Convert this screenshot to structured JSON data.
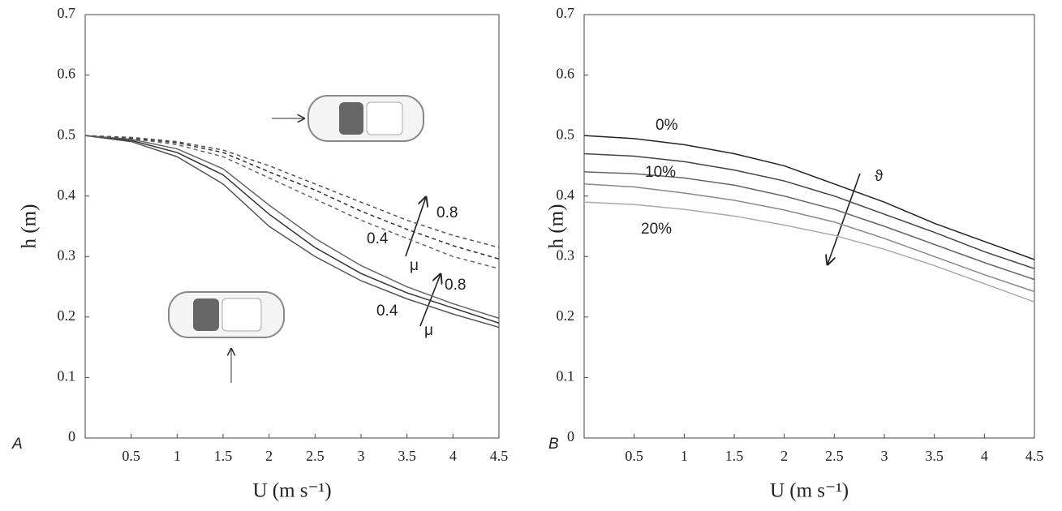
{
  "chart_data": [
    {
      "type": "line",
      "panel_label": "A",
      "xlabel": "U (m s⁻¹)",
      "ylabel": "h (m)",
      "x": [
        0,
        0.5,
        1,
        1.5,
        2,
        2.5,
        3,
        3.5,
        4,
        4.5
      ],
      "series": [
        {
          "color": "#555555",
          "dashed": false,
          "values": [
            0.5,
            0.49,
            0.465,
            0.42,
            0.35,
            0.3,
            0.26,
            0.23,
            0.205,
            0.183
          ]
        },
        {
          "color": "#333333",
          "dashed": false,
          "values": [
            0.5,
            0.492,
            0.472,
            0.435,
            0.37,
            0.315,
            0.272,
            0.24,
            0.215,
            0.19
          ]
        },
        {
          "color": "#666666",
          "dashed": false,
          "values": [
            0.5,
            0.494,
            0.478,
            0.445,
            0.385,
            0.33,
            0.285,
            0.25,
            0.222,
            0.198
          ]
        },
        {
          "color": "#666666",
          "dashed": true,
          "values": [
            0.5,
            0.495,
            0.485,
            0.465,
            0.43,
            0.395,
            0.36,
            0.33,
            0.3,
            0.28
          ]
        },
        {
          "color": "#333333",
          "dashed": true,
          "values": [
            0.5,
            0.496,
            0.488,
            0.472,
            0.44,
            0.41,
            0.375,
            0.345,
            0.318,
            0.296
          ]
        },
        {
          "color": "#555555",
          "dashed": true,
          "values": [
            0.5,
            0.497,
            0.49,
            0.476,
            0.45,
            0.42,
            0.39,
            0.36,
            0.335,
            0.315
          ]
        }
      ],
      "annotations": [
        "0.8",
        "0.4",
        "μ",
        "0.8",
        "0.4",
        "μ"
      ],
      "xlim": [
        0,
        4.5
      ],
      "xticks": [
        0.5,
        1,
        1.5,
        2,
        2.5,
        3,
        3.5,
        4,
        4.5
      ],
      "ylim": [
        0,
        0.7
      ],
      "yticks": [
        0,
        0.1,
        0.2,
        0.3,
        0.4,
        0.5,
        0.6,
        0.7
      ]
    },
    {
      "type": "line",
      "panel_label": "B",
      "xlabel": "U (m s⁻¹)",
      "ylabel": "h (m)",
      "x": [
        0,
        0.5,
        1,
        1.5,
        2,
        2.5,
        3,
        3.5,
        4,
        4.5
      ],
      "series": [
        {
          "color": "#222222",
          "dashed": false,
          "values": [
            0.5,
            0.495,
            0.485,
            0.47,
            0.45,
            0.42,
            0.39,
            0.355,
            0.325,
            0.295
          ]
        },
        {
          "color": "#444444",
          "dashed": false,
          "values": [
            0.47,
            0.466,
            0.457,
            0.443,
            0.425,
            0.4,
            0.37,
            0.34,
            0.308,
            0.28
          ]
        },
        {
          "color": "#666666",
          "dashed": false,
          "values": [
            0.44,
            0.437,
            0.43,
            0.418,
            0.4,
            0.378,
            0.35,
            0.32,
            0.29,
            0.262
          ]
        },
        {
          "color": "#888888",
          "dashed": false,
          "values": [
            0.42,
            0.415,
            0.405,
            0.393,
            0.377,
            0.357,
            0.33,
            0.3,
            0.27,
            0.242
          ]
        },
        {
          "color": "#aaaaaa",
          "dashed": false,
          "values": [
            0.39,
            0.386,
            0.378,
            0.367,
            0.352,
            0.335,
            0.312,
            0.285,
            0.255,
            0.225
          ]
        }
      ],
      "annotations": [
        "0%",
        "10%",
        "20%",
        "ϑ"
      ],
      "xlim": [
        0,
        4.5
      ],
      "xticks": [
        0.5,
        1,
        1.5,
        2,
        2.5,
        3,
        3.5,
        4,
        4.5
      ],
      "ylim": [
        0,
        0.7
      ],
      "yticks": [
        0,
        0.1,
        0.2,
        0.3,
        0.4,
        0.5,
        0.6,
        0.7
      ]
    }
  ]
}
